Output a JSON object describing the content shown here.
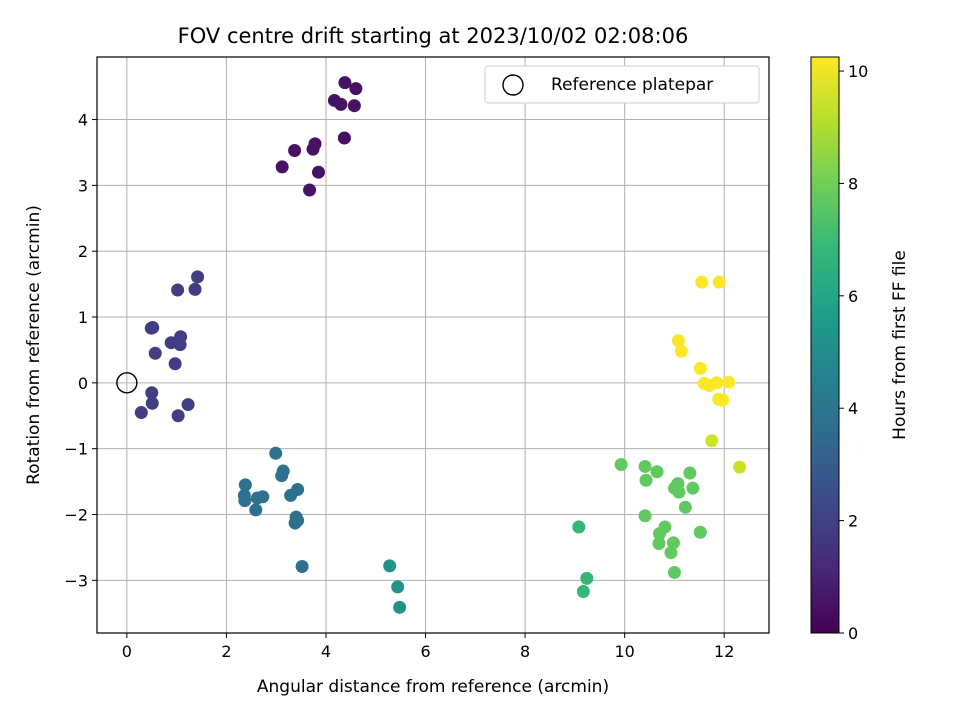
{
  "chart_data": {
    "type": "scatter",
    "title": "FOV centre drift starting at 2023/10/02 02:08:06",
    "xlabel": "Angular distance from reference (arcmin)",
    "ylabel": "Rotation from reference (arcmin)",
    "xlim": [
      -0.6,
      12.9
    ],
    "ylim": [
      -3.8,
      4.95
    ],
    "xticks": [
      0,
      2,
      4,
      6,
      8,
      10,
      12
    ],
    "yticks": [
      -3,
      -2,
      -1,
      0,
      1,
      2,
      3,
      4
    ],
    "xtick_labels": [
      "0",
      "2",
      "4",
      "6",
      "8",
      "10",
      "12"
    ],
    "ytick_labels": [
      "−3",
      "−2",
      "−1",
      "0",
      "1",
      "2",
      "3",
      "4"
    ],
    "grid": true,
    "legend": {
      "position": "top-right",
      "label": "Reference platepar"
    },
    "reference_point": {
      "x": 0,
      "y": 0
    },
    "colorbar": {
      "label": "Hours from first FF file",
      "range": [
        0,
        10.25
      ],
      "ticks": [
        0,
        2,
        4,
        6,
        8,
        10
      ],
      "tick_labels": [
        "0",
        "2",
        "4",
        "6",
        "8",
        "10"
      ],
      "colormap": [
        "#440154",
        "#482878",
        "#3e4989",
        "#31688e",
        "#26828e",
        "#1f9e89",
        "#35b779",
        "#6ece58",
        "#b5de2b",
        "#fde725"
      ]
    },
    "points": [
      {
        "x": 4.38,
        "y": 4.56,
        "h": 0.5
      },
      {
        "x": 4.6,
        "y": 4.47,
        "h": 0.5
      },
      {
        "x": 4.17,
        "y": 4.29,
        "h": 0.5
      },
      {
        "x": 4.3,
        "y": 4.23,
        "h": 0.5
      },
      {
        "x": 4.57,
        "y": 4.21,
        "h": 0.5
      },
      {
        "x": 4.37,
        "y": 3.72,
        "h": 0.5
      },
      {
        "x": 3.78,
        "y": 3.63,
        "h": 0.5
      },
      {
        "x": 3.74,
        "y": 3.55,
        "h": 0.5
      },
      {
        "x": 3.37,
        "y": 3.53,
        "h": 0.5
      },
      {
        "x": 3.12,
        "y": 3.28,
        "h": 0.5
      },
      {
        "x": 3.85,
        "y": 3.2,
        "h": 0.5
      },
      {
        "x": 3.67,
        "y": 2.93,
        "h": 0.5
      },
      {
        "x": 1.42,
        "y": 1.61,
        "h": 1.9
      },
      {
        "x": 1.02,
        "y": 1.41,
        "h": 1.9
      },
      {
        "x": 1.37,
        "y": 1.42,
        "h": 1.9
      },
      {
        "x": 0.49,
        "y": 0.83,
        "h": 1.9
      },
      {
        "x": 0.52,
        "y": 0.84,
        "h": 1.9
      },
      {
        "x": 1.08,
        "y": 0.7,
        "h": 1.9
      },
      {
        "x": 0.89,
        "y": 0.61,
        "h": 1.9
      },
      {
        "x": 1.07,
        "y": 0.58,
        "h": 1.9
      },
      {
        "x": 0.57,
        "y": 0.45,
        "h": 1.9
      },
      {
        "x": 0.97,
        "y": 0.29,
        "h": 1.9
      },
      {
        "x": 0.5,
        "y": -0.15,
        "h": 1.9
      },
      {
        "x": 0.51,
        "y": -0.31,
        "h": 1.9
      },
      {
        "x": 1.23,
        "y": -0.33,
        "h": 1.9
      },
      {
        "x": 0.29,
        "y": -0.45,
        "h": 1.9
      },
      {
        "x": 1.03,
        "y": -0.5,
        "h": 1.9
      },
      {
        "x": 2.99,
        "y": -1.07,
        "h": 3.8
      },
      {
        "x": 3.14,
        "y": -1.34,
        "h": 3.8
      },
      {
        "x": 3.11,
        "y": -1.41,
        "h": 3.8
      },
      {
        "x": 2.38,
        "y": -1.55,
        "h": 3.8
      },
      {
        "x": 3.43,
        "y": -1.62,
        "h": 3.8
      },
      {
        "x": 2.36,
        "y": -1.71,
        "h": 3.8
      },
      {
        "x": 3.29,
        "y": -1.71,
        "h": 3.8
      },
      {
        "x": 2.73,
        "y": -1.73,
        "h": 3.8
      },
      {
        "x": 2.62,
        "y": -1.75,
        "h": 3.8
      },
      {
        "x": 2.37,
        "y": -1.79,
        "h": 3.8
      },
      {
        "x": 2.59,
        "y": -1.93,
        "h": 3.8
      },
      {
        "x": 3.4,
        "y": -2.04,
        "h": 3.8
      },
      {
        "x": 3.43,
        "y": -2.09,
        "h": 3.8
      },
      {
        "x": 3.38,
        "y": -2.13,
        "h": 3.8
      },
      {
        "x": 3.52,
        "y": -2.79,
        "h": 3.8
      },
      {
        "x": 5.28,
        "y": -2.78,
        "h": 5.2
      },
      {
        "x": 5.44,
        "y": -3.1,
        "h": 5.2
      },
      {
        "x": 5.48,
        "y": -3.41,
        "h": 5.2
      },
      {
        "x": 9.08,
        "y": -2.19,
        "h": 6.8
      },
      {
        "x": 9.24,
        "y": -2.97,
        "h": 6.8
      },
      {
        "x": 9.17,
        "y": -3.17,
        "h": 6.8
      },
      {
        "x": 9.93,
        "y": -1.24,
        "h": 7.7
      },
      {
        "x": 10.41,
        "y": -1.27,
        "h": 7.7
      },
      {
        "x": 10.65,
        "y": -1.35,
        "h": 7.7
      },
      {
        "x": 11.31,
        "y": -1.37,
        "h": 7.7
      },
      {
        "x": 10.43,
        "y": -1.48,
        "h": 7.7
      },
      {
        "x": 11.07,
        "y": -1.53,
        "h": 7.7
      },
      {
        "x": 11.0,
        "y": -1.6,
        "h": 7.7
      },
      {
        "x": 11.37,
        "y": -1.6,
        "h": 7.7
      },
      {
        "x": 11.09,
        "y": -1.66,
        "h": 7.7
      },
      {
        "x": 11.22,
        "y": -1.89,
        "h": 7.7
      },
      {
        "x": 10.41,
        "y": -2.02,
        "h": 7.7
      },
      {
        "x": 10.81,
        "y": -2.19,
        "h": 7.7
      },
      {
        "x": 10.7,
        "y": -2.29,
        "h": 7.7
      },
      {
        "x": 11.52,
        "y": -2.27,
        "h": 7.7
      },
      {
        "x": 10.69,
        "y": -2.44,
        "h": 7.7
      },
      {
        "x": 10.98,
        "y": -2.43,
        "h": 7.7
      },
      {
        "x": 10.93,
        "y": -2.58,
        "h": 7.7
      },
      {
        "x": 11.0,
        "y": -2.88,
        "h": 7.7
      },
      {
        "x": 12.31,
        "y": -1.28,
        "h": 9.5
      },
      {
        "x": 11.75,
        "y": -0.88,
        "h": 9.5
      },
      {
        "x": 11.55,
        "y": 1.53,
        "h": 10.2
      },
      {
        "x": 11.9,
        "y": 1.53,
        "h": 10.2
      },
      {
        "x": 11.08,
        "y": 0.64,
        "h": 10.2
      },
      {
        "x": 11.14,
        "y": 0.48,
        "h": 10.2
      },
      {
        "x": 11.52,
        "y": 0.22,
        "h": 10.2
      },
      {
        "x": 11.6,
        "y": -0.01,
        "h": 10.2
      },
      {
        "x": 11.7,
        "y": -0.04,
        "h": 10.2
      },
      {
        "x": 11.85,
        "y": 0.0,
        "h": 10.2
      },
      {
        "x": 12.09,
        "y": 0.01,
        "h": 10.2
      },
      {
        "x": 11.89,
        "y": -0.25,
        "h": 10.2
      },
      {
        "x": 11.97,
        "y": -0.26,
        "h": 10.2
      }
    ]
  }
}
